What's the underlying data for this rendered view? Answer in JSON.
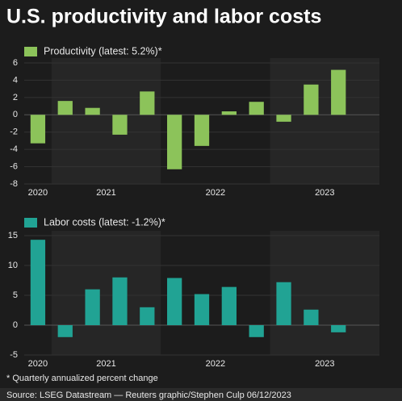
{
  "title": "U.S. productivity and labor costs",
  "chart_data": [
    {
      "type": "bar",
      "categories": [
        "2020",
        "2021",
        null,
        null,
        null,
        "2022",
        null,
        null,
        null,
        "2023",
        null,
        null,
        null
      ],
      "series": [
        {
          "name": "Productivity (latest: 5.2%)*",
          "color": "#8cc35a",
          "values": [
            -3.3,
            1.6,
            0.8,
            -2.3,
            2.7,
            -6.3,
            -3.6,
            0.4,
            1.5,
            -0.8,
            3.5,
            5.2,
            null
          ]
        }
      ],
      "ylim": [
        -8,
        6
      ],
      "yticks": [
        -8,
        -6,
        -4,
        -2,
        0,
        2,
        4,
        6
      ],
      "grid": true
    },
    {
      "type": "bar",
      "categories": [
        "2020",
        "2021",
        null,
        null,
        null,
        "2022",
        null,
        null,
        null,
        "2023",
        null,
        null,
        null
      ],
      "series": [
        {
          "name": "Labor costs (latest: -1.2%)*",
          "color": "#21a394",
          "values": [
            14.3,
            -2.0,
            6.0,
            8.0,
            3.0,
            7.9,
            5.2,
            6.4,
            -2.0,
            7.2,
            2.6,
            -1.2,
            null
          ]
        }
      ],
      "ylim": [
        -5,
        15
      ],
      "yticks": [
        -5,
        0,
        5,
        10,
        15
      ],
      "grid": true
    }
  ],
  "footnote": "* Quarterly annualized percent change",
  "source": "Source: LSEG Datastream — Reuters graphic/Stephen Culp  06/12/2023"
}
